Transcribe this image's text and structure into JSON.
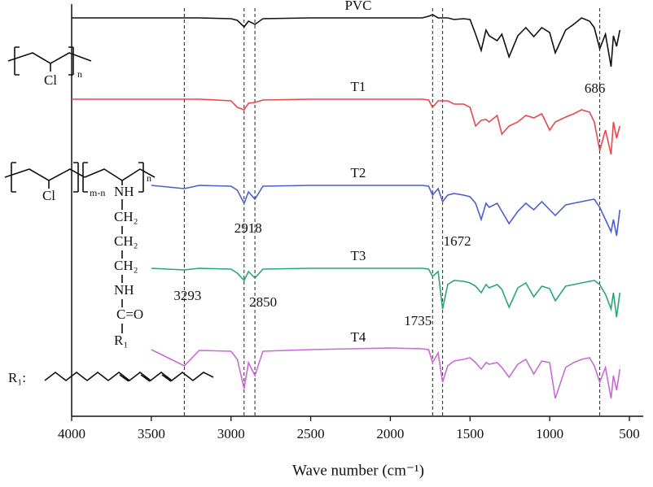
{
  "chart_data": {
    "type": "line",
    "x_label": "Wave number (cm⁻¹)",
    "xlim": [
      4000,
      500
    ],
    "xticks": [
      4000,
      3500,
      3000,
      2500,
      2000,
      1500,
      1000,
      500
    ],
    "ylim": [
      0,
      507
    ],
    "x": [
      4000,
      3500,
      3293,
      3200,
      3000,
      2960,
      2918,
      2890,
      2850,
      2800,
      2500,
      2000,
      1800,
      1760,
      1735,
      1700,
      1672,
      1640,
      1600,
      1540,
      1500,
      1465,
      1430,
      1400,
      1380,
      1330,
      1300,
      1255,
      1200,
      1150,
      1100,
      1050,
      1000,
      965,
      900,
      850,
      800,
      750,
      720,
      686,
      650,
      615,
      600,
      580,
      560
    ],
    "series": [
      {
        "name": "PVC",
        "color": "#111111",
        "values": [
          490,
          490,
          490,
          490,
          489,
          487,
          479,
          486,
          482,
          489,
          490,
          490,
          490,
          492,
          494,
          490,
          490,
          490,
          488,
          489,
          488,
          470,
          450,
          475,
          468,
          462,
          470,
          442,
          468,
          478,
          467,
          478,
          472,
          447,
          475,
          482,
          490,
          486,
          478,
          452,
          470,
          430,
          468,
          455,
          475
        ]
      },
      {
        "name": "T1",
        "color": "#e8474c",
        "values": [
          390,
          390,
          390,
          390,
          388,
          380,
          377,
          385,
          386,
          389,
          390,
          390,
          390,
          389,
          380,
          388,
          388,
          388,
          384,
          384,
          380,
          357,
          364,
          365,
          362,
          370,
          347,
          357,
          362,
          370,
          367,
          372,
          352,
          362,
          368,
          372,
          377,
          374,
          362,
          327,
          352,
          322,
          362,
          342,
          357
        ]
      },
      {
        "name": "T2",
        "color": "#4a5fd0",
        "values": [
          null,
          284,
          280,
          284,
          283,
          278,
          262,
          276,
          267,
          283,
          284,
          284,
          284,
          283,
          272,
          280,
          264,
          272,
          274,
          272,
          270,
          262,
          242,
          262,
          257,
          262,
          252,
          237,
          252,
          262,
          254,
          264,
          254,
          247,
          260,
          262,
          264,
          266,
          267,
          257,
          242,
          227,
          242,
          222,
          254
        ]
      },
      {
        "name": "T3",
        "color": "#2aa57a",
        "values": [
          null,
          182,
          180,
          182,
          181,
          176,
          167,
          178,
          170,
          181,
          182,
          182,
          182,
          181,
          172,
          178,
          132,
          162,
          167,
          166,
          164,
          160,
          152,
          162,
          158,
          162,
          156,
          134,
          158,
          164,
          147,
          160,
          157,
          142,
          160,
          162,
          164,
          166,
          167,
          162,
          150,
          132,
          152,
          122,
          152
        ]
      },
      {
        "name": "T4",
        "color": "#c86ad6",
        "values": [
          null,
          82,
          62,
          81,
          80,
          70,
          34,
          66,
          50,
          80,
          82,
          84,
          83,
          82,
          66,
          78,
          42,
          62,
          68,
          70,
          72,
          66,
          58,
          66,
          64,
          66,
          60,
          48,
          64,
          70,
          52,
          68,
          66,
          22,
          60,
          66,
          70,
          72,
          62,
          42,
          60,
          22,
          50,
          32,
          58
        ]
      }
    ],
    "markers": [
      3293,
      2918,
      2850,
      1735,
      1672,
      686
    ]
  },
  "structures": {
    "pvc": {
      "substituent": "Cl",
      "subscript": "n"
    },
    "copolymer": {
      "substituent": "Cl",
      "subscript_left": "m-n",
      "subscript_right": "n",
      "chain": [
        "NH",
        "CH₂",
        "CH₂",
        "CH₂",
        "NH",
        "C=O",
        "R₁"
      ]
    },
    "r1_label": "R₁:"
  }
}
